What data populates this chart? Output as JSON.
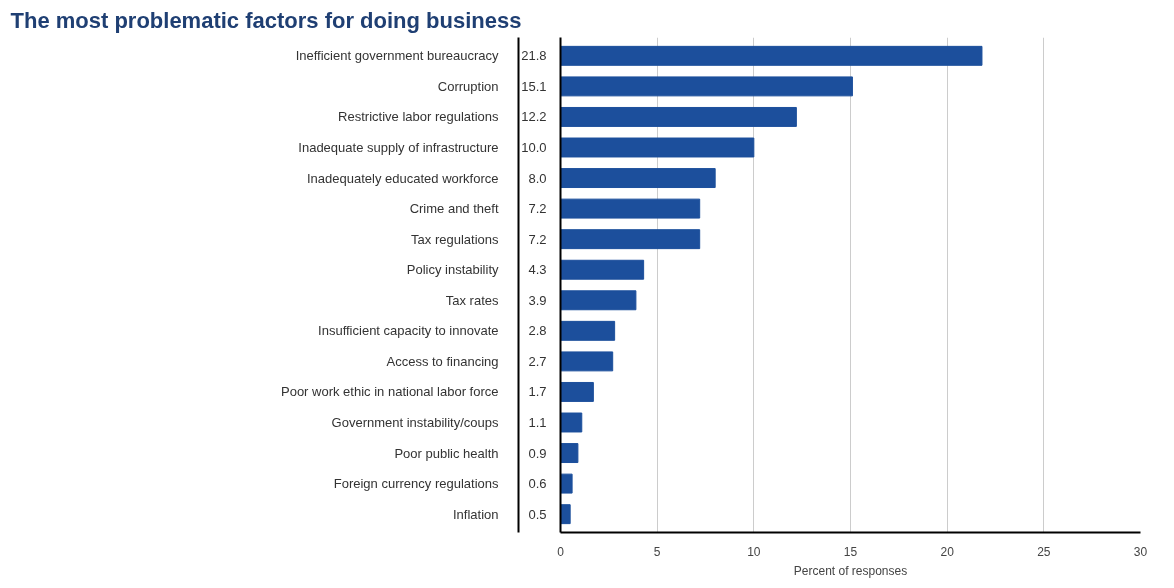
{
  "chart_data": {
    "type": "bar",
    "orientation": "horizontal",
    "title": "The most problematic factors for doing business",
    "xlabel": "Percent of responses",
    "categories": [
      "Inefficient government bureaucracy",
      "Corruption",
      "Restrictive labor regulations",
      "Inadequate supply of infrastructure",
      "Inadequately educated workforce",
      "Crime and theft",
      "Tax regulations",
      "Policy instability",
      "Tax rates",
      "Insufficient capacity to innovate",
      "Access to financing",
      "Poor work ethic in national labor force",
      "Government instability/coups",
      "Poor public health",
      "Foreign currency regulations",
      "Inflation"
    ],
    "values": [
      21.8,
      15.1,
      12.2,
      10.0,
      8.0,
      7.2,
      7.2,
      4.3,
      3.9,
      2.8,
      2.7,
      1.7,
      1.1,
      0.9,
      0.6,
      0.5
    ],
    "color": "#1c4f9c",
    "xlim": [
      0,
      30
    ],
    "xticks": [
      0,
      5,
      10,
      15,
      20,
      25,
      30
    ],
    "grid": "x",
    "legend": false,
    "value_labels": [
      "21.8",
      "15.1",
      "12.2",
      "10.0",
      "8.0",
      "7.2",
      "7.2",
      "4.3",
      "3.9",
      "2.8",
      "2.7",
      "1.7",
      "1.1",
      "0.9",
      "0.6",
      "0.5"
    ]
  }
}
